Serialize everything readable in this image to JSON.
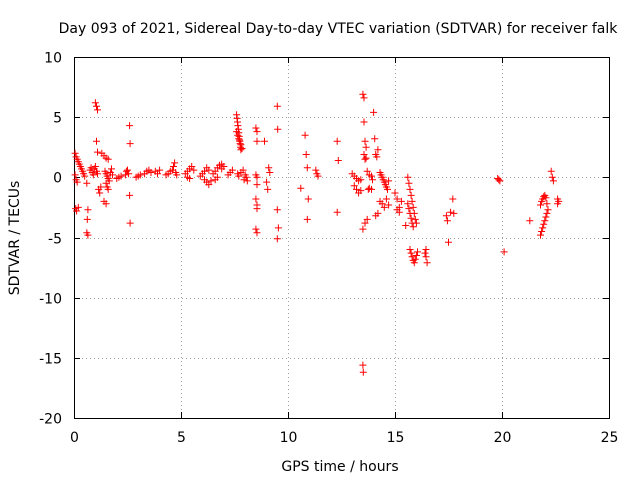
{
  "chart_data": {
    "type": "scatter",
    "title": "Day 093 of 2021, Sidereal Day-to-day VTEC variation (SDTVAR) for receiver falk",
    "xlabel": "GPS time / hours",
    "ylabel": "SDTVAR / TECUs",
    "xlim": [
      0,
      25
    ],
    "ylim": [
      -20,
      10
    ],
    "xticks": [
      0,
      5,
      10,
      15,
      20,
      25
    ],
    "yticks": [
      10,
      5,
      0,
      -5,
      -10,
      -15,
      -20
    ],
    "xtick_labels": [
      "0",
      "5",
      "10",
      "15",
      "20",
      "25"
    ],
    "ytick_labels": [
      "10",
      "5",
      "0",
      "-5",
      "-10",
      "-15",
      "-20"
    ],
    "grid": true,
    "legend": "none",
    "marker": "plus",
    "color": "#ff0000",
    "series": [
      {
        "name": "SDTVAR",
        "points": [
          [
            0.05,
            2.0
          ],
          [
            0.1,
            1.7
          ],
          [
            0.15,
            1.5
          ],
          [
            0.2,
            1.3
          ],
          [
            0.25,
            1.1
          ],
          [
            0.3,
            0.9
          ],
          [
            0.35,
            0.7
          ],
          [
            0.4,
            0.5
          ],
          [
            0.45,
            0.3
          ],
          [
            0.5,
            0.1
          ],
          [
            0.05,
            0.2
          ],
          [
            0.1,
            -0.2
          ],
          [
            0.15,
            -0.4
          ],
          [
            0.08,
            -2.6
          ],
          [
            0.12,
            -2.8
          ],
          [
            0.2,
            -2.5
          ],
          [
            0.6,
            -0.5
          ],
          [
            0.65,
            -2.7
          ],
          [
            0.62,
            -3.5
          ],
          [
            0.6,
            -4.6
          ],
          [
            0.65,
            -4.8
          ],
          [
            0.75,
            0.6
          ],
          [
            0.8,
            0.8
          ],
          [
            0.85,
            0.4
          ],
          [
            0.9,
            0.2
          ],
          [
            0.95,
            0.7
          ],
          [
            1.0,
            0.9
          ],
          [
            1.05,
            0.5
          ],
          [
            1.1,
            0.3
          ],
          [
            1.0,
            6.2
          ],
          [
            1.05,
            5.9
          ],
          [
            1.1,
            5.6
          ],
          [
            1.05,
            3.0
          ],
          [
            1.1,
            2.1
          ],
          [
            1.15,
            -1.0
          ],
          [
            1.2,
            -1.3
          ],
          [
            1.25,
            -0.8
          ],
          [
            1.3,
            2.0
          ],
          [
            1.4,
            1.8
          ],
          [
            1.5,
            1.6
          ],
          [
            1.6,
            1.5
          ],
          [
            1.45,
            0.5
          ],
          [
            1.5,
            0.3
          ],
          [
            1.55,
            0.1
          ],
          [
            1.6,
            -0.1
          ],
          [
            1.65,
            -0.3
          ],
          [
            1.7,
            0.4
          ],
          [
            1.5,
            -0.5
          ],
          [
            1.55,
            -0.8
          ],
          [
            1.6,
            -1.0
          ],
          [
            1.4,
            -2.0
          ],
          [
            1.5,
            -2.2
          ],
          [
            1.75,
            0.7
          ],
          [
            1.8,
            0.2
          ],
          [
            2.0,
            -0.1
          ],
          [
            2.1,
            0.0
          ],
          [
            2.2,
            0.1
          ],
          [
            2.4,
            0.2
          ],
          [
            2.45,
            0.5
          ],
          [
            2.5,
            0.6
          ],
          [
            2.55,
            0.3
          ],
          [
            2.6,
            4.3
          ],
          [
            2.62,
            2.8
          ],
          [
            2.6,
            -1.5
          ],
          [
            2.62,
            -3.8
          ],
          [
            2.9,
            0.0
          ],
          [
            3.0,
            0.1
          ],
          [
            3.1,
            0.2
          ],
          [
            3.3,
            0.3
          ],
          [
            3.4,
            0.5
          ],
          [
            3.5,
            0.6
          ],
          [
            3.6,
            0.4
          ],
          [
            3.8,
            0.5
          ],
          [
            3.9,
            0.3
          ],
          [
            4.0,
            0.6
          ],
          [
            4.3,
            0.2
          ],
          [
            4.4,
            0.3
          ],
          [
            4.5,
            0.5
          ],
          [
            4.6,
            0.6
          ],
          [
            4.65,
            0.9
          ],
          [
            4.7,
            1.2
          ],
          [
            4.75,
            0.4
          ],
          [
            4.8,
            0.2
          ],
          [
            5.2,
            0.3
          ],
          [
            5.3,
            0.5
          ],
          [
            5.4,
            0.7
          ],
          [
            5.5,
            0.9
          ],
          [
            5.6,
            0.6
          ],
          [
            5.3,
            0.0
          ],
          [
            5.4,
            -0.1
          ],
          [
            5.9,
            0.1
          ],
          [
            6.0,
            0.3
          ],
          [
            6.1,
            0.5
          ],
          [
            6.2,
            0.8
          ],
          [
            6.3,
            0.6
          ],
          [
            6.1,
            -0.2
          ],
          [
            6.2,
            -0.4
          ],
          [
            6.3,
            -0.6
          ],
          [
            6.4,
            -0.3
          ],
          [
            6.5,
            0.3
          ],
          [
            6.6,
            0.5
          ],
          [
            6.7,
            0.8
          ],
          [
            6.8,
            1.0
          ],
          [
            6.9,
            1.1
          ],
          [
            6.6,
            -0.2
          ],
          [
            6.7,
            0.0
          ],
          [
            6.9,
            0.7
          ],
          [
            7.0,
            0.9
          ],
          [
            7.2,
            0.2
          ],
          [
            7.3,
            0.4
          ],
          [
            7.4,
            0.6
          ],
          [
            7.6,
            5.2
          ],
          [
            7.62,
            4.9
          ],
          [
            7.64,
            4.6
          ],
          [
            7.66,
            4.3
          ],
          [
            7.68,
            4.0
          ],
          [
            7.7,
            3.7
          ],
          [
            7.72,
            3.4
          ],
          [
            7.74,
            3.1
          ],
          [
            7.76,
            2.8
          ],
          [
            7.78,
            2.5
          ],
          [
            7.8,
            2.3
          ],
          [
            7.6,
            3.8
          ],
          [
            7.65,
            3.5
          ],
          [
            7.7,
            3.2
          ],
          [
            7.75,
            3.0
          ],
          [
            7.8,
            2.7
          ],
          [
            7.85,
            2.4
          ],
          [
            7.65,
            0.3
          ],
          [
            7.7,
            0.1
          ],
          [
            7.8,
            0.4
          ],
          [
            7.9,
            0.6
          ],
          [
            8.0,
            0.2
          ],
          [
            8.05,
            0.0
          ],
          [
            8.1,
            -0.3
          ],
          [
            7.95,
            -0.2
          ],
          [
            8.5,
            4.1
          ],
          [
            8.55,
            3.8
          ],
          [
            8.55,
            3.0
          ],
          [
            8.5,
            0.2
          ],
          [
            8.55,
            0.0
          ],
          [
            8.55,
            -0.6
          ],
          [
            8.5,
            -1.8
          ],
          [
            8.55,
            -2.3
          ],
          [
            8.55,
            -2.6
          ],
          [
            8.5,
            -4.3
          ],
          [
            8.55,
            -4.6
          ],
          [
            8.9,
            3.0
          ],
          [
            9.0,
            -0.4
          ],
          [
            9.05,
            -1.0
          ],
          [
            9.1,
            0.8
          ],
          [
            9.15,
            0.4
          ],
          [
            9.5,
            5.9
          ],
          [
            9.52,
            4.0
          ],
          [
            9.5,
            -2.7
          ],
          [
            9.55,
            -4.2
          ],
          [
            9.5,
            -5.1
          ],
          [
            10.6,
            -0.9
          ],
          [
            10.8,
            3.5
          ],
          [
            10.85,
            1.9
          ],
          [
            10.9,
            0.8
          ],
          [
            10.95,
            -1.8
          ],
          [
            10.9,
            -3.5
          ],
          [
            11.3,
            0.6
          ],
          [
            11.35,
            0.3
          ],
          [
            11.4,
            0.1
          ],
          [
            12.3,
            3.0
          ],
          [
            12.35,
            1.4
          ],
          [
            12.3,
            -2.9
          ],
          [
            13.0,
            0.3
          ],
          [
            13.1,
            0.1
          ],
          [
            13.2,
            -0.1
          ],
          [
            13.3,
            -0.3
          ],
          [
            13.4,
            -0.2
          ],
          [
            13.1,
            -0.7
          ],
          [
            13.2,
            -1.0
          ],
          [
            13.3,
            -1.3
          ],
          [
            13.4,
            -1.1
          ],
          [
            13.5,
            6.9
          ],
          [
            13.55,
            6.6
          ],
          [
            13.55,
            4.6
          ],
          [
            13.6,
            3.0
          ],
          [
            13.65,
            2.5
          ],
          [
            13.55,
            1.9
          ],
          [
            13.6,
            1.5
          ],
          [
            13.65,
            1.6
          ],
          [
            13.7,
            0.5
          ],
          [
            13.8,
            0.2
          ],
          [
            13.9,
            0.1
          ],
          [
            13.95,
            -0.2
          ],
          [
            13.75,
            -1.0
          ],
          [
            13.8,
            -0.9
          ],
          [
            13.9,
            -1.0
          ],
          [
            13.5,
            -4.3
          ],
          [
            13.6,
            -3.8
          ],
          [
            13.7,
            -3.5
          ],
          [
            13.5,
            -15.6
          ],
          [
            13.52,
            -16.2
          ],
          [
            14.0,
            5.4
          ],
          [
            14.05,
            3.2
          ],
          [
            14.1,
            1.9
          ],
          [
            14.15,
            1.7
          ],
          [
            14.2,
            2.3
          ],
          [
            14.3,
            0.4
          ],
          [
            14.35,
            0.2
          ],
          [
            14.4,
            0.0
          ],
          [
            14.45,
            -0.2
          ],
          [
            14.5,
            -0.4
          ],
          [
            14.55,
            -0.6
          ],
          [
            14.6,
            -0.8
          ],
          [
            14.65,
            -1.0
          ],
          [
            14.7,
            -0.3
          ],
          [
            14.3,
            -2.0
          ],
          [
            14.4,
            -2.2
          ],
          [
            14.5,
            -2.5
          ],
          [
            14.6,
            -1.8
          ],
          [
            14.7,
            -2.3
          ],
          [
            14.1,
            -3.2
          ],
          [
            14.2,
            -3.0
          ],
          [
            15.0,
            -1.3
          ],
          [
            15.1,
            -1.8
          ],
          [
            15.2,
            -2.5
          ],
          [
            15.3,
            -2.0
          ],
          [
            15.1,
            -2.7
          ],
          [
            15.2,
            -2.9
          ],
          [
            15.6,
            0.0
          ],
          [
            15.65,
            -0.5
          ],
          [
            15.7,
            -1.0
          ],
          [
            15.75,
            -1.5
          ],
          [
            15.8,
            -2.0
          ],
          [
            15.85,
            -2.5
          ],
          [
            15.9,
            -3.0
          ],
          [
            15.95,
            -3.5
          ],
          [
            16.0,
            -3.8
          ],
          [
            15.6,
            -2.2
          ],
          [
            15.65,
            -2.6
          ],
          [
            15.7,
            -3.0
          ],
          [
            15.75,
            -3.4
          ],
          [
            15.8,
            -3.8
          ],
          [
            15.85,
            -4.1
          ],
          [
            15.5,
            -4.0
          ],
          [
            15.7,
            -6.0
          ],
          [
            15.75,
            -6.3
          ],
          [
            15.8,
            -6.6
          ],
          [
            15.85,
            -6.9
          ],
          [
            15.9,
            -7.1
          ],
          [
            15.95,
            -6.8
          ],
          [
            16.0,
            -6.5
          ],
          [
            16.05,
            -6.2
          ],
          [
            16.4,
            -6.3
          ],
          [
            16.45,
            -6.6
          ],
          [
            16.5,
            -7.1
          ],
          [
            16.45,
            -6.0
          ],
          [
            17.4,
            -3.2
          ],
          [
            17.45,
            -3.6
          ],
          [
            17.5,
            -5.4
          ],
          [
            17.6,
            -2.9
          ],
          [
            17.7,
            -1.8
          ],
          [
            17.75,
            -3.0
          ],
          [
            19.8,
            -0.1
          ],
          [
            19.85,
            -0.2
          ],
          [
            19.9,
            -0.3
          ],
          [
            20.1,
            -6.2
          ],
          [
            21.3,
            -3.6
          ],
          [
            21.8,
            -4.8
          ],
          [
            21.85,
            -4.5
          ],
          [
            21.9,
            -4.2
          ],
          [
            21.95,
            -3.9
          ],
          [
            22.0,
            -3.6
          ],
          [
            22.05,
            -3.3
          ],
          [
            22.1,
            -3.0
          ],
          [
            22.15,
            -2.7
          ],
          [
            21.8,
            -2.3
          ],
          [
            21.85,
            -2.0
          ],
          [
            21.9,
            -1.8
          ],
          [
            21.95,
            -1.6
          ],
          [
            22.0,
            -1.5
          ],
          [
            22.05,
            -1.7
          ],
          [
            22.1,
            -2.2
          ],
          [
            22.3,
            0.5
          ],
          [
            22.35,
            0.0
          ],
          [
            22.4,
            -0.3
          ],
          [
            22.6,
            -1.8
          ],
          [
            22.65,
            -2.0
          ],
          [
            22.6,
            -2.2
          ]
        ]
      }
    ]
  }
}
